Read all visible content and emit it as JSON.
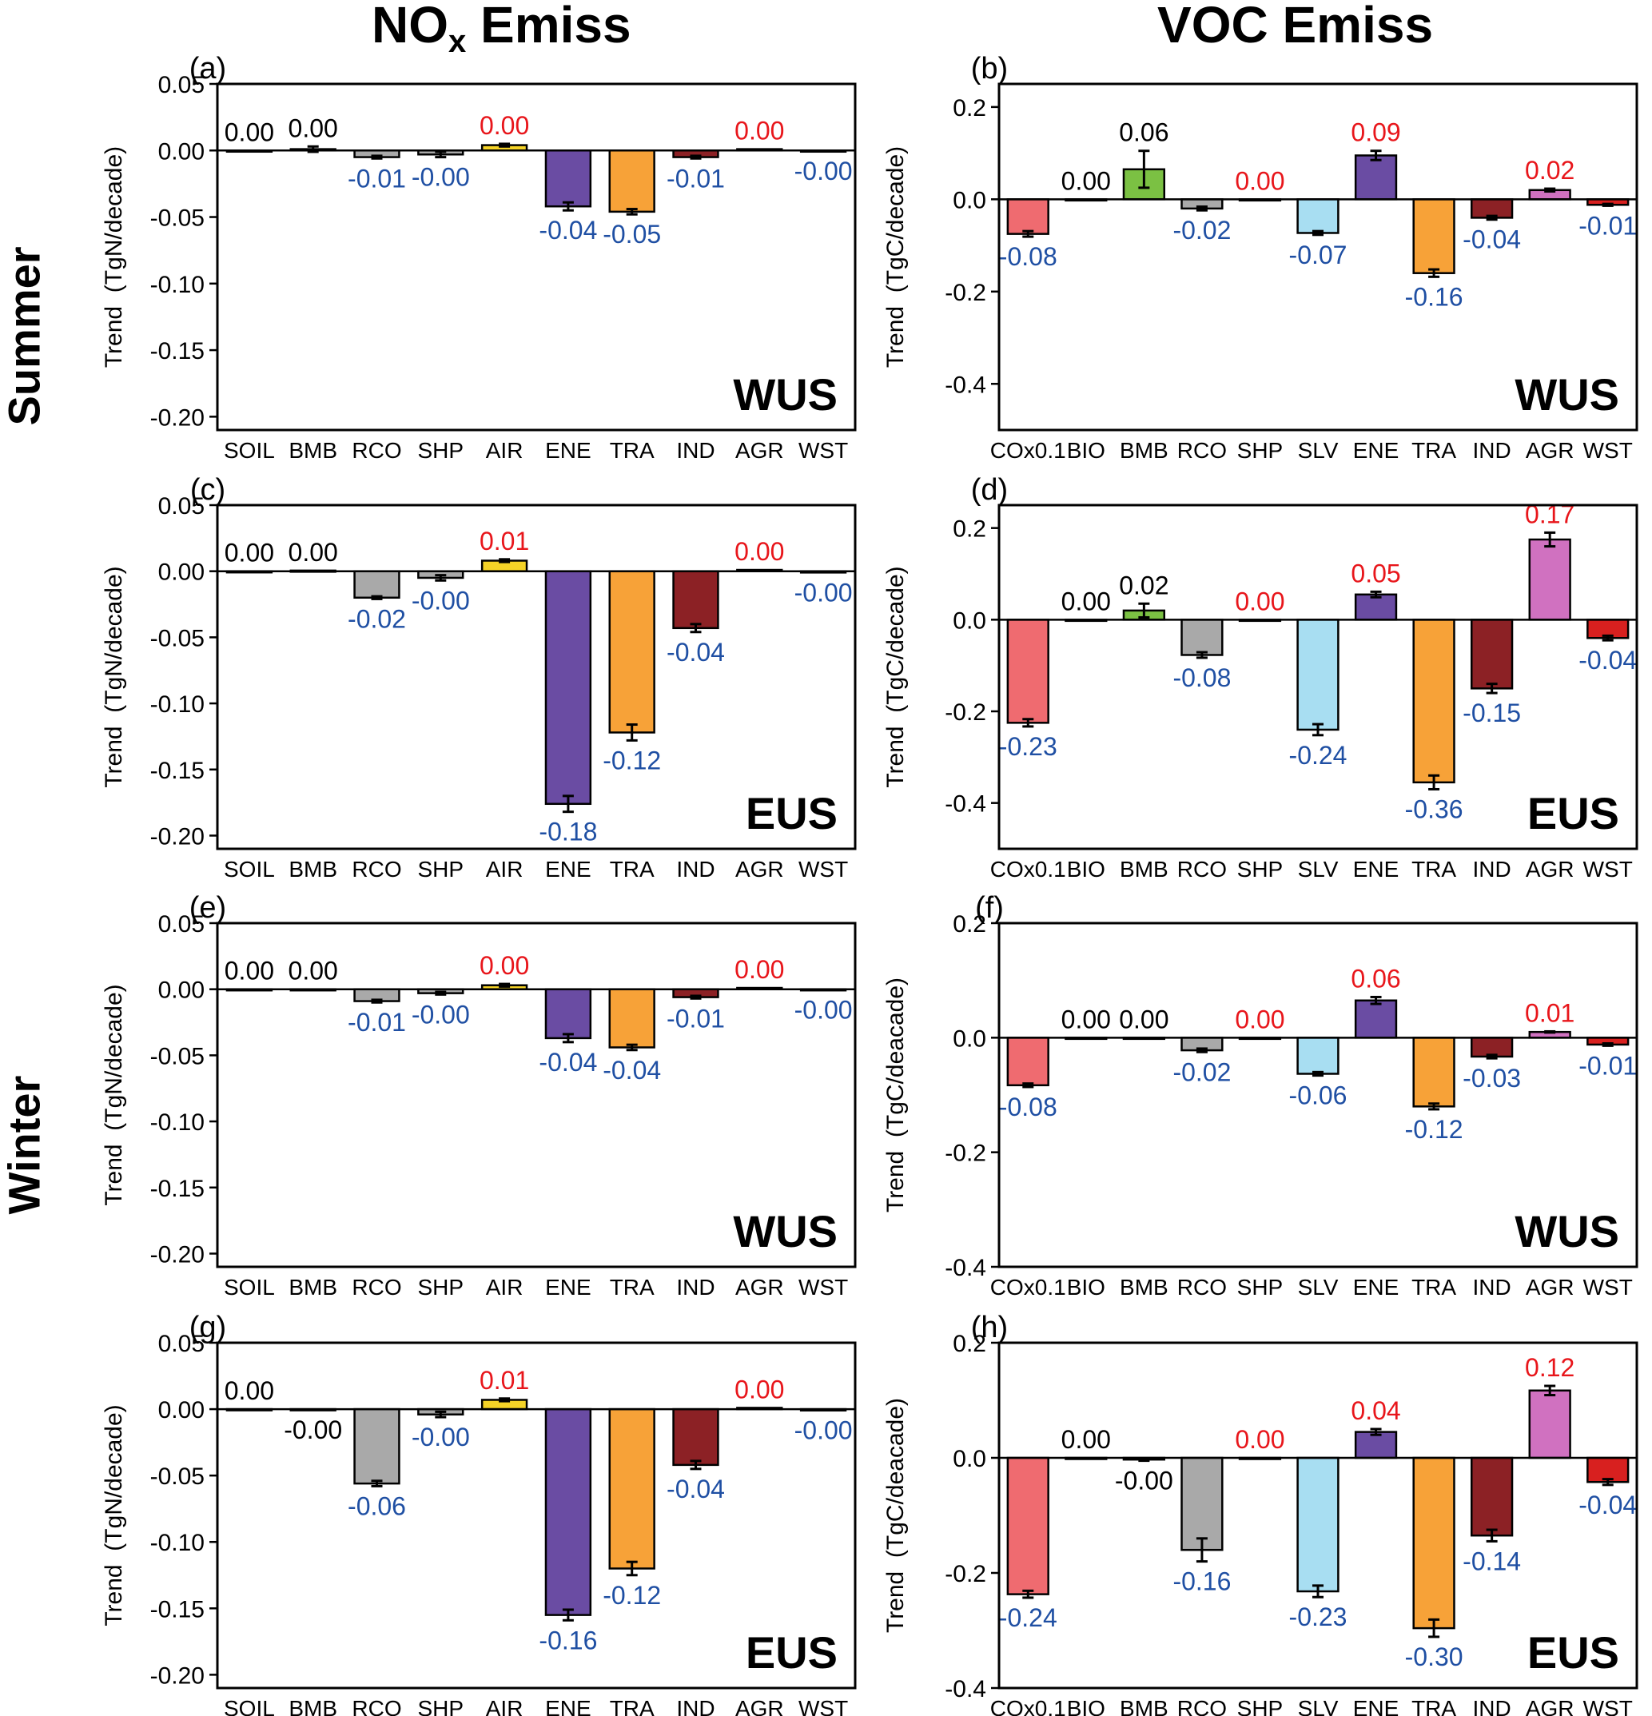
{
  "columns": {
    "left": {
      "main": "NO",
      "sub": "x",
      "rest": " Emiss"
    },
    "right": "VOC Emiss"
  },
  "rows": {
    "summer": "Summer",
    "winter": "Winter"
  },
  "colors": {
    "negative_label": "#1f4fa3",
    "positive_label": "#e8161b",
    "zero_label": "#000000"
  },
  "chart_data": [
    {
      "type": "bar",
      "panel": "(a)",
      "region": "WUS",
      "ylabel": "Trend  (TgN/decade)",
      "ylim": [
        -0.21,
        0.05
      ],
      "yticks": [
        "0.05",
        "0.00",
        "-0.05",
        "-0.10",
        "-0.15",
        "-0.20"
      ],
      "categories": [
        "SOIL",
        "BMB",
        "RCO",
        "SHP",
        "AIR",
        "ENE",
        "TRA",
        "IND",
        "AGR",
        "WST"
      ],
      "values": [
        0.0,
        0.001,
        -0.005,
        -0.003,
        0.004,
        -0.042,
        -0.046,
        -0.005,
        0.001,
        -0.0005
      ],
      "errors": [
        0,
        0.002,
        0.001,
        0.002,
        0.001,
        0.003,
        0.002,
        0.001,
        0,
        0
      ],
      "labels": [
        "0.00",
        "0.00",
        "-0.01",
        "-0.00",
        "0.00",
        "-0.04",
        "-0.05",
        "-0.01",
        "0.00",
        "-0.00"
      ],
      "label_colors": [
        "k",
        "k",
        "n",
        "n",
        "p",
        "n",
        "n",
        "n",
        "p",
        "n"
      ],
      "bar_colors": [
        "#ffffff",
        "#ffffff",
        "#a9a9a9",
        "#a9a9a9",
        "#f5d327",
        "#6a4ca3",
        "#f7a238",
        "#8c2125",
        "#ffffff",
        "#ffffff"
      ]
    },
    {
      "type": "bar",
      "panel": "(b)",
      "region": "WUS",
      "ylabel": "Trend  (TgC/decade)",
      "ylim": [
        -0.5,
        0.25
      ],
      "yticks": [
        "0.2",
        "0.0",
        "-0.2",
        "-0.4"
      ],
      "categories": [
        "COx0.1",
        "BIO",
        "BMB",
        "RCO",
        "SHP",
        "SLV",
        "ENE",
        "TRA",
        "IND",
        "AGR",
        "WST"
      ],
      "values": [
        -0.075,
        0.0,
        0.065,
        -0.02,
        0.0,
        -0.073,
        0.095,
        -0.16,
        -0.04,
        0.02,
        -0.012
      ],
      "errors": [
        0.006,
        0,
        0.04,
        0.004,
        0,
        0.004,
        0.01,
        0.008,
        0.004,
        0.003,
        0.002
      ],
      "labels": [
        "-0.08",
        "0.00",
        "0.06",
        "-0.02",
        "0.00",
        "-0.07",
        "0.09",
        "-0.16",
        "-0.04",
        "0.02",
        "-0.01"
      ],
      "label_colors": [
        "n",
        "k",
        "k",
        "n",
        "p",
        "n",
        "p",
        "n",
        "n",
        "p",
        "n"
      ],
      "bar_colors": [
        "#ef6b70",
        "#ffffff",
        "#7bc143",
        "#a9a9a9",
        "#ffffff",
        "#a8def2",
        "#6a4ca3",
        "#f7a238",
        "#8c2125",
        "#d071c0",
        "#d8201f"
      ]
    },
    {
      "type": "bar",
      "panel": "(c)",
      "region": "EUS",
      "ylabel": "Trend  (TgN/decade)",
      "ylim": [
        -0.21,
        0.05
      ],
      "yticks": [
        "0.05",
        "0.00",
        "-0.05",
        "-0.10",
        "-0.15",
        "-0.20"
      ],
      "categories": [
        "SOIL",
        "BMB",
        "RCO",
        "SHP",
        "AIR",
        "ENE",
        "TRA",
        "IND",
        "AGR",
        "WST"
      ],
      "values": [
        0.0,
        0.0005,
        -0.02,
        -0.005,
        0.008,
        -0.176,
        -0.122,
        -0.043,
        0.001,
        -0.001
      ],
      "errors": [
        0,
        0,
        0.001,
        0.002,
        0.001,
        0.006,
        0.006,
        0.003,
        0,
        0
      ],
      "labels": [
        "0.00",
        "0.00",
        "-0.02",
        "-0.00",
        "0.01",
        "-0.18",
        "-0.12",
        "-0.04",
        "0.00",
        "-0.00"
      ],
      "label_colors": [
        "k",
        "k",
        "n",
        "n",
        "p",
        "n",
        "n",
        "n",
        "p",
        "n"
      ],
      "bar_colors": [
        "#ffffff",
        "#ffffff",
        "#a9a9a9",
        "#a9a9a9",
        "#f5d327",
        "#6a4ca3",
        "#f7a238",
        "#8c2125",
        "#ffffff",
        "#ffffff"
      ]
    },
    {
      "type": "bar",
      "panel": "(d)",
      "region": "EUS",
      "ylabel": "Trend  (TgC/decade)",
      "ylim": [
        -0.5,
        0.25
      ],
      "yticks": [
        "0.2",
        "0.0",
        "-0.2",
        "-0.4"
      ],
      "categories": [
        "COx0.1",
        "BIO",
        "BMB",
        "RCO",
        "SHP",
        "SLV",
        "ENE",
        "TRA",
        "IND",
        "AGR",
        "WST"
      ],
      "values": [
        -0.225,
        0.0,
        0.02,
        -0.077,
        0.0,
        -0.24,
        0.055,
        -0.355,
        -0.15,
        0.175,
        -0.04
      ],
      "errors": [
        0.008,
        0,
        0.015,
        0.006,
        0,
        0.012,
        0.006,
        0.015,
        0.01,
        0.015,
        0.005
      ],
      "labels": [
        "-0.23",
        "0.00",
        "0.02",
        "-0.08",
        "0.00",
        "-0.24",
        "0.05",
        "-0.36",
        "-0.15",
        "0.17",
        "-0.04"
      ],
      "label_colors": [
        "n",
        "k",
        "k",
        "n",
        "p",
        "n",
        "p",
        "n",
        "n",
        "p",
        "n"
      ],
      "bar_colors": [
        "#ef6b70",
        "#ffffff",
        "#7bc143",
        "#a9a9a9",
        "#ffffff",
        "#a8def2",
        "#6a4ca3",
        "#f7a238",
        "#8c2125",
        "#d071c0",
        "#d8201f"
      ]
    },
    {
      "type": "bar",
      "panel": "(e)",
      "region": "WUS",
      "ylabel": "Trend  (TgN/decade)",
      "ylim": [
        -0.21,
        0.05
      ],
      "yticks": [
        "0.05",
        "0.00",
        "-0.05",
        "-0.10",
        "-0.15",
        "-0.20"
      ],
      "categories": [
        "SOIL",
        "BMB",
        "RCO",
        "SHP",
        "AIR",
        "ENE",
        "TRA",
        "IND",
        "AGR",
        "WST"
      ],
      "values": [
        0.0,
        0.0,
        -0.009,
        -0.003,
        0.003,
        -0.037,
        -0.044,
        -0.006,
        0.001,
        -0.0005
      ],
      "errors": [
        0,
        0,
        0.001,
        0.001,
        0.001,
        0.003,
        0.002,
        0.001,
        0,
        0
      ],
      "labels": [
        "0.00",
        "0.00",
        "-0.01",
        "-0.00",
        "0.00",
        "-0.04",
        "-0.04",
        "-0.01",
        "0.00",
        "-0.00"
      ],
      "label_colors": [
        "k",
        "k",
        "n",
        "n",
        "p",
        "n",
        "n",
        "n",
        "p",
        "n"
      ],
      "bar_colors": [
        "#ffffff",
        "#ffffff",
        "#a9a9a9",
        "#a9a9a9",
        "#f5d327",
        "#6a4ca3",
        "#f7a238",
        "#8c2125",
        "#ffffff",
        "#ffffff"
      ]
    },
    {
      "type": "bar",
      "panel": "(f)",
      "region": "WUS",
      "ylabel": "Trend  (TgC/deacade)",
      "ylim": [
        -0.4,
        0.2
      ],
      "yticks": [
        "0.2",
        "0.0",
        "-0.2",
        "-0.4"
      ],
      "categories": [
        "COx0.1",
        "BIO",
        "BMB",
        "RCO",
        "SHP",
        "SLV",
        "ENE",
        "TRA",
        "IND",
        "AGR",
        "WST"
      ],
      "values": [
        -0.083,
        0.0,
        0.0,
        -0.022,
        0.0,
        -0.063,
        0.065,
        -0.12,
        -0.033,
        0.01,
        -0.012
      ],
      "errors": [
        0.003,
        0,
        0,
        0.003,
        0,
        0.003,
        0.006,
        0.005,
        0.003,
        0.001,
        0.002
      ],
      "labels": [
        "-0.08",
        "0.00",
        "0.00",
        "-0.02",
        "0.00",
        "-0.06",
        "0.06",
        "-0.12",
        "-0.03",
        "0.01",
        "-0.01"
      ],
      "label_colors": [
        "n",
        "k",
        "k",
        "n",
        "p",
        "n",
        "p",
        "n",
        "n",
        "p",
        "n"
      ],
      "bar_colors": [
        "#ef6b70",
        "#ffffff",
        "#7bc143",
        "#a9a9a9",
        "#ffffff",
        "#a8def2",
        "#6a4ca3",
        "#f7a238",
        "#8c2125",
        "#d071c0",
        "#d8201f"
      ]
    },
    {
      "type": "bar",
      "panel": "(g)",
      "region": "EUS",
      "ylabel": "Trend  (TgN/decade)",
      "ylim": [
        -0.21,
        0.05
      ],
      "yticks": [
        "0.05",
        "0.00",
        "-0.05",
        "-0.10",
        "-0.15",
        "-0.20"
      ],
      "categories": [
        "SOIL",
        "BMB",
        "RCO",
        "SHP",
        "AIR",
        "ENE",
        "TRA",
        "IND",
        "AGR",
        "WST"
      ],
      "values": [
        0.0,
        -0.0005,
        -0.056,
        -0.004,
        0.007,
        -0.155,
        -0.12,
        -0.042,
        0.001,
        -0.001
      ],
      "errors": [
        0,
        0,
        0.002,
        0.002,
        0.001,
        0.004,
        0.005,
        0.003,
        0,
        0
      ],
      "labels": [
        "0.00",
        "-0.00",
        "-0.06",
        "-0.00",
        "0.01",
        "-0.16",
        "-0.12",
        "-0.04",
        "0.00",
        "-0.00"
      ],
      "label_colors": [
        "k",
        "k",
        "n",
        "n",
        "p",
        "n",
        "n",
        "n",
        "p",
        "n"
      ],
      "bar_colors": [
        "#ffffff",
        "#ffffff",
        "#a9a9a9",
        "#a9a9a9",
        "#f5d327",
        "#6a4ca3",
        "#f7a238",
        "#8c2125",
        "#ffffff",
        "#ffffff"
      ]
    },
    {
      "type": "bar",
      "panel": "(h)",
      "region": "EUS",
      "ylabel": "Trend  (TgC/deacade)",
      "ylim": [
        -0.4,
        0.2
      ],
      "yticks": [
        "0.2",
        "0.0",
        "-0.2",
        "-0.4"
      ],
      "categories": [
        "COx0.1",
        "BIO",
        "BMB",
        "RCO",
        "SHP",
        "SLV",
        "ENE",
        "TRA",
        "IND",
        "AGR",
        "WST"
      ],
      "values": [
        -0.237,
        0.0,
        -0.003,
        -0.16,
        0.0,
        -0.232,
        0.045,
        -0.296,
        -0.135,
        0.117,
        -0.042
      ],
      "errors": [
        0.006,
        0,
        0.002,
        0.02,
        0,
        0.01,
        0.005,
        0.015,
        0.01,
        0.008,
        0.005
      ],
      "labels": [
        "-0.24",
        "0.00",
        "-0.00",
        "-0.16",
        "0.00",
        "-0.23",
        "0.04",
        "-0.30",
        "-0.14",
        "0.12",
        "-0.04"
      ],
      "label_colors": [
        "n",
        "k",
        "k",
        "n",
        "p",
        "n",
        "p",
        "n",
        "n",
        "p",
        "n"
      ],
      "bar_colors": [
        "#ef6b70",
        "#ffffff",
        "#7bc143",
        "#a9a9a9",
        "#ffffff",
        "#a8def2",
        "#6a4ca3",
        "#f7a238",
        "#8c2125",
        "#d071c0",
        "#d8201f"
      ]
    }
  ]
}
